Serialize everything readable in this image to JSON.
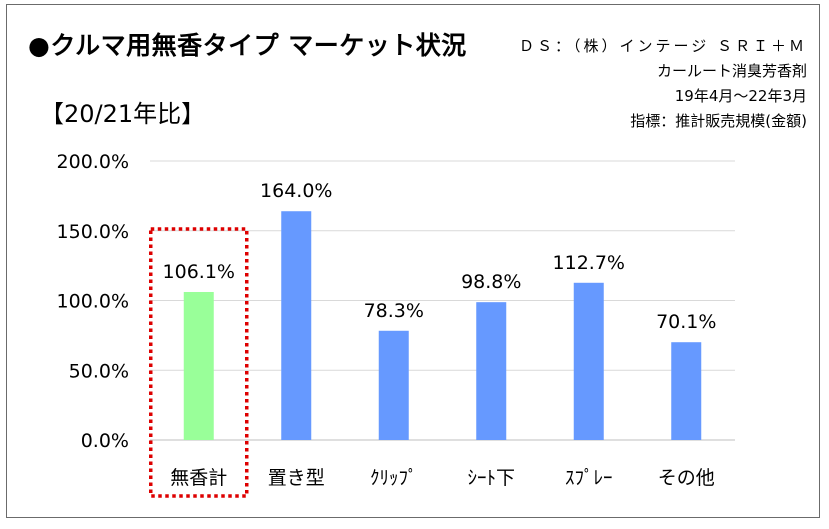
{
  "title": "●クルマ用無香タイプ マーケット状況",
  "period_label": "【20/21年比】",
  "source_lines": [
    "ＤＳ：（株）インテージ ＳＲＩ＋Ｍ",
    "カールート消臭芳香剤",
    "19年4月～22年3月",
    "指標：推計販売規模(金額)"
  ],
  "colors": {
    "highlight": "#99ff99",
    "bar": "#6699ff",
    "grid": "#d9d9d9",
    "dotted_box": "#dd0000",
    "axis": "#bfbfbf"
  },
  "chart_data": {
    "type": "bar",
    "title": "",
    "xlabel": "",
    "ylabel": "",
    "categories": [
      "無香計",
      "置き型",
      "ｸﾘｯﾌﾟ",
      "ｼｰﾄ下",
      "ｽﾌﾟﾚｰ",
      "その他"
    ],
    "values": [
      106.1,
      164.0,
      78.3,
      98.8,
      112.7,
      70.1
    ],
    "value_labels": [
      "106.1%",
      "164.0%",
      "78.3%",
      "98.8%",
      "112.7%",
      "70.1%"
    ],
    "highlight_index": 0,
    "ylim": [
      0,
      200
    ],
    "yticks": [
      0,
      50,
      100,
      150,
      200
    ],
    "ytick_labels": [
      "0.0%",
      "50.0%",
      "100.0%",
      "150.0%",
      "200.0%"
    ],
    "grid": true,
    "legend": "none"
  }
}
